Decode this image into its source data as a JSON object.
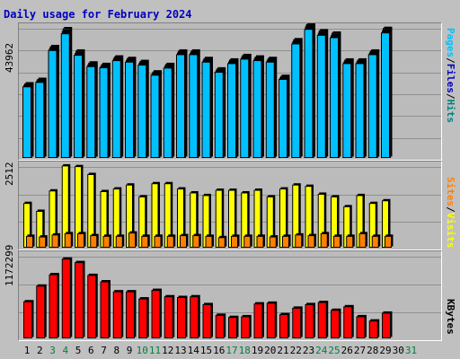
{
  "title": "Daily usage for February 2024",
  "colors": {
    "title": "#0000c0",
    "pages": "#00c0ff",
    "files": "#0000c0",
    "hits": "#008080",
    "visits": "#ffff00",
    "sites": "#ff8000",
    "kbytes": "#ff0000",
    "weekend_label": "#008040",
    "weekday_label": "#000000"
  },
  "legend": {
    "pages": "Pages",
    "files": "Files",
    "hits": "Hits",
    "sep": "/",
    "sites": "Sites",
    "visits": "Visits",
    "kbytes": "KBytes"
  },
  "chart_data": [
    {
      "type": "bar",
      "ylabel": "43962",
      "ylim": [
        0,
        43962
      ],
      "categories": [
        "1",
        "2",
        "3",
        "4",
        "5",
        "6",
        "7",
        "8",
        "9",
        "10",
        "11",
        "12",
        "13",
        "14",
        "15",
        "16",
        "17",
        "18",
        "19",
        "20",
        "21",
        "22",
        "23",
        "24",
        "25",
        "26",
        "27",
        "28",
        "29",
        "30",
        "31"
      ],
      "series": [
        {
          "name": "Hits",
          "values": [
            25000,
            26500,
            37500,
            43500,
            36000,
            32000,
            31500,
            34000,
            33500,
            32500,
            29000,
            31500,
            36000,
            36000,
            33500,
            30000,
            33000,
            34500,
            34000,
            33500,
            27500,
            39800,
            44900,
            42800,
            42000,
            33000,
            33000,
            36000,
            43600,
            0,
            0
          ]
        },
        {
          "name": "Files",
          "values": [
            24500,
            26000,
            36800,
            42600,
            35200,
            31400,
            30900,
            33400,
            32900,
            31900,
            28400,
            30900,
            35400,
            35400,
            32900,
            29400,
            32400,
            33900,
            33400,
            32900,
            27000,
            39100,
            44100,
            42000,
            41200,
            32400,
            32400,
            35400,
            42800,
            0,
            0
          ]
        },
        {
          "name": "Pages",
          "values": [
            24000,
            25500,
            36200,
            41800,
            34600,
            30800,
            30400,
            32800,
            32300,
            31300,
            27900,
            30300,
            34800,
            34800,
            32300,
            28900,
            31800,
            33300,
            32800,
            32300,
            26500,
            38400,
            43300,
            41300,
            40500,
            31800,
            31800,
            34800,
            42100,
            0,
            0
          ]
        }
      ]
    },
    {
      "type": "bar",
      "ylabel": "2512",
      "ylim": [
        0,
        2512
      ],
      "categories": [
        "1",
        "2",
        "3",
        "4",
        "5",
        "6",
        "7",
        "8",
        "9",
        "10",
        "11",
        "12",
        "13",
        "14",
        "15",
        "16",
        "17",
        "18",
        "19",
        "20",
        "21",
        "22",
        "23",
        "24",
        "25",
        "26",
        "27",
        "28",
        "29",
        "30",
        "31"
      ],
      "series": [
        {
          "name": "Visits",
          "values": [
            1360,
            1120,
            1740,
            2500,
            2480,
            2240,
            1720,
            1800,
            1920,
            1560,
            1960,
            1960,
            1800,
            1680,
            1600,
            1760,
            1760,
            1680,
            1760,
            1560,
            1800,
            1920,
            1880,
            1640,
            1560,
            1260,
            1600,
            1360,
            1440,
            0,
            0
          ]
        },
        {
          "name": "Sites",
          "values": [
            360,
            340,
            400,
            440,
            440,
            380,
            360,
            360,
            460,
            360,
            360,
            360,
            380,
            380,
            360,
            320,
            360,
            360,
            360,
            340,
            360,
            400,
            380,
            440,
            360,
            360,
            440,
            360,
            360,
            0,
            0
          ]
        }
      ]
    },
    {
      "type": "bar",
      "ylabel": "1172299",
      "ylim": [
        0,
        1172299
      ],
      "categories": [
        "1",
        "2",
        "3",
        "4",
        "5",
        "6",
        "7",
        "8",
        "9",
        "10",
        "11",
        "12",
        "13",
        "14",
        "15",
        "16",
        "17",
        "18",
        "19",
        "20",
        "21",
        "22",
        "23",
        "24",
        "25",
        "26",
        "27",
        "28",
        "29",
        "30",
        "31"
      ],
      "series": [
        {
          "name": "KBytes",
          "values": [
            520000,
            740000,
            900000,
            1120000,
            1070000,
            890000,
            800000,
            660000,
            660000,
            560000,
            680000,
            590000,
            580000,
            590000,
            480000,
            330000,
            300000,
            310000,
            490000,
            500000,
            340000,
            430000,
            480000,
            510000,
            400000,
            450000,
            310000,
            250000,
            360000,
            0,
            0
          ]
        }
      ]
    }
  ],
  "x_labels": [
    {
      "text": "1",
      "weekend": false
    },
    {
      "text": "2",
      "weekend": false
    },
    {
      "text": "3",
      "weekend": true
    },
    {
      "text": "4",
      "weekend": true
    },
    {
      "text": "5",
      "weekend": false
    },
    {
      "text": "6",
      "weekend": false
    },
    {
      "text": "7",
      "weekend": false
    },
    {
      "text": "8",
      "weekend": false
    },
    {
      "text": "9",
      "weekend": false
    },
    {
      "text": "10",
      "weekend": true
    },
    {
      "text": "11",
      "weekend": true
    },
    {
      "text": "12",
      "weekend": false
    },
    {
      "text": "13",
      "weekend": false
    },
    {
      "text": "14",
      "weekend": false
    },
    {
      "text": "15",
      "weekend": false
    },
    {
      "text": "16",
      "weekend": false
    },
    {
      "text": "17",
      "weekend": true
    },
    {
      "text": "18",
      "weekend": true
    },
    {
      "text": "19",
      "weekend": false
    },
    {
      "text": "20",
      "weekend": false
    },
    {
      "text": "21",
      "weekend": false
    },
    {
      "text": "22",
      "weekend": false
    },
    {
      "text": "23",
      "weekend": false
    },
    {
      "text": "24",
      "weekend": true
    },
    {
      "text": "25",
      "weekend": true
    },
    {
      "text": "26",
      "weekend": false
    },
    {
      "text": "27",
      "weekend": false
    },
    {
      "text": "28",
      "weekend": false
    },
    {
      "text": "29",
      "weekend": false
    },
    {
      "text": "30",
      "weekend": false
    },
    {
      "text": "31",
      "weekend": true
    }
  ]
}
